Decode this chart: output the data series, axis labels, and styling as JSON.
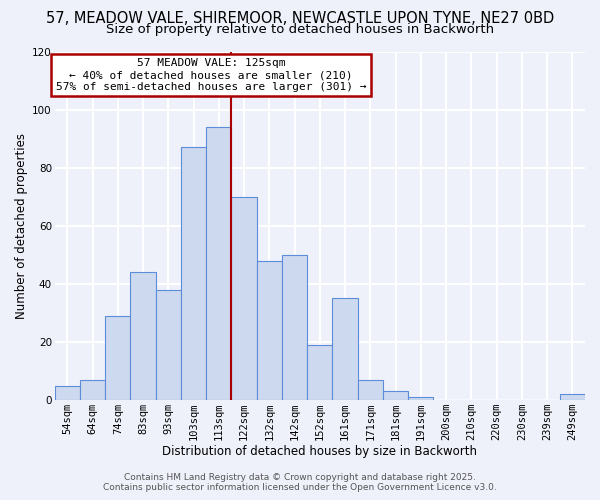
{
  "title_line1": "57, MEADOW VALE, SHIREMOOR, NEWCASTLE UPON TYNE, NE27 0BD",
  "title_line2": "Size of property relative to detached houses in Backworth",
  "xlabel": "Distribution of detached houses by size in Backworth",
  "ylabel": "Number of detached properties",
  "bar_labels": [
    "54sqm",
    "64sqm",
    "74sqm",
    "83sqm",
    "93sqm",
    "103sqm",
    "113sqm",
    "122sqm",
    "132sqm",
    "142sqm",
    "152sqm",
    "161sqm",
    "171sqm",
    "181sqm",
    "191sqm",
    "200sqm",
    "210sqm",
    "220sqm",
    "230sqm",
    "239sqm",
    "249sqm"
  ],
  "bar_values": [
    5,
    7,
    29,
    44,
    38,
    87,
    94,
    70,
    48,
    50,
    19,
    35,
    7,
    3,
    1,
    0,
    0,
    0,
    0,
    0,
    2
  ],
  "bar_color": "#cdd9ef",
  "bar_edge_color": "#5b8dd9",
  "vline_x_index": 7.0,
  "vline_color": "#aa0000",
  "ylim": [
    0,
    120
  ],
  "yticks": [
    0,
    20,
    40,
    60,
    80,
    100,
    120
  ],
  "annotation_title": "57 MEADOW VALE: 125sqm",
  "annotation_line2": "← 40% of detached houses are smaller (210)",
  "annotation_line3": "57% of semi-detached houses are larger (301) →",
  "footer_line1": "Contains HM Land Registry data © Crown copyright and database right 2025.",
  "footer_line2": "Contains public sector information licensed under the Open Government Licence v3.0.",
  "background_color": "#eef1fa",
  "grid_color": "#ffffff",
  "title_fontsize": 10.5,
  "subtitle_fontsize": 9.5,
  "axis_label_fontsize": 8.5,
  "tick_fontsize": 7.5,
  "annotation_fontsize": 8,
  "footer_fontsize": 6.5
}
